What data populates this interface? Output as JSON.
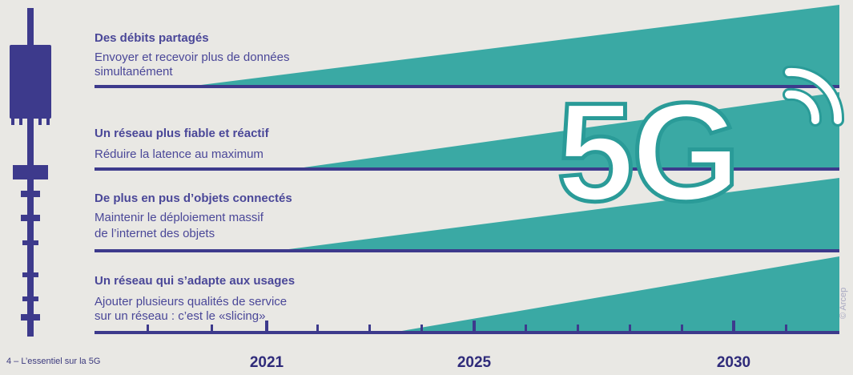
{
  "colors": {
    "teal": "#3aa9a4",
    "navy": "#3d3a8c",
    "text": "#4a4798",
    "background": "#e9e8e4"
  },
  "bands": [
    {
      "title": "Des débits partagés",
      "desc_lines": [
        "Envoyer et recevoir plus de données",
        "simultanément"
      ]
    },
    {
      "title": "Un réseau plus fiable et réactif",
      "desc_lines": [
        "Réduire la latence au maximum"
      ]
    },
    {
      "title": "De plus en pus d’objets connectés",
      "desc_lines": [
        "Maintenir le déploiement massif",
        "de l’internet des objets"
      ]
    },
    {
      "title": "Un réseau qui s’adapte aux usages",
      "desc_lines": [
        "Ajouter plusieurs qualités de service",
        "sur un réseau : c’est le «slicing»"
      ]
    }
  ],
  "timeline": {
    "years": [
      "2021",
      "2025",
      "2030"
    ]
  },
  "logo": {
    "text": "5G",
    "icon": "wifi-signal-icon"
  },
  "antenna": {
    "icon": "antenna-tower-icon"
  },
  "footer": {
    "text": "4 – L’essentiel sur la 5G"
  },
  "credit": {
    "text": "© Arcep"
  }
}
